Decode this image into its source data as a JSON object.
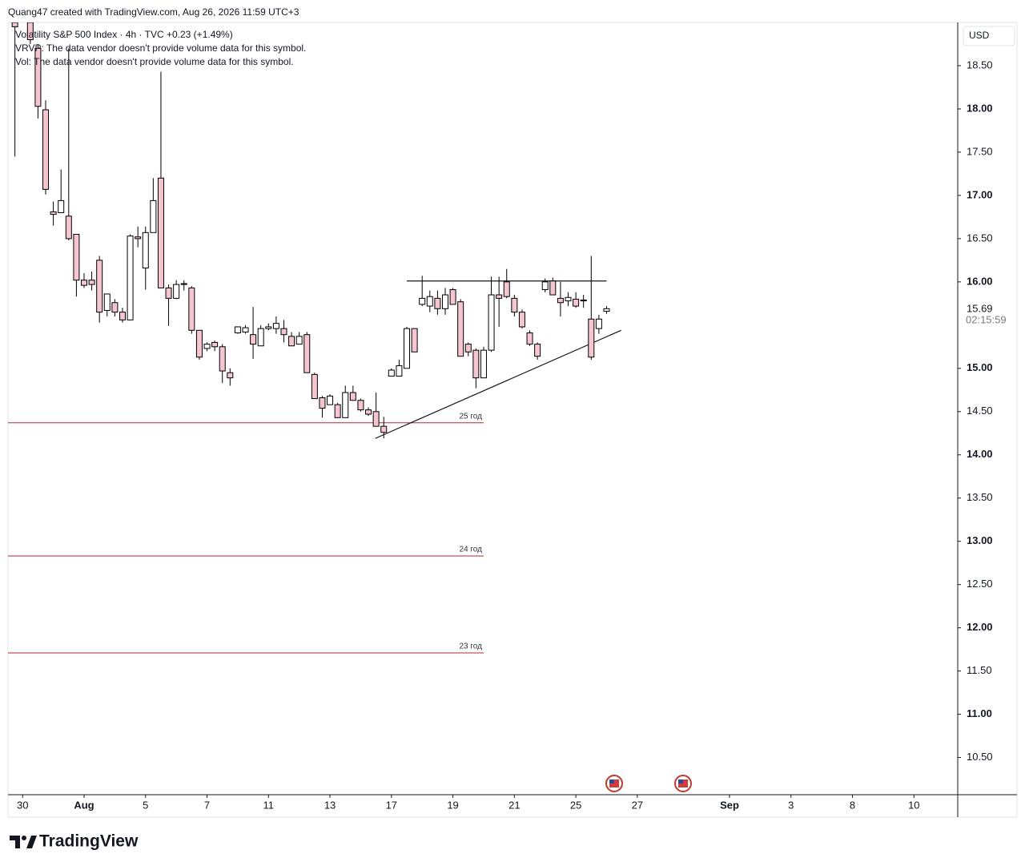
{
  "header": {
    "attribution": "Quang47 created with TradingView.com, Aug 26, 2026 11:59 UTC+3"
  },
  "footer": {
    "brand": "TradingView"
  },
  "chart_data": {
    "type": "candlestick",
    "title": "Volatility S&P 500 Index · 4h · TVC  +0.23 (+1.49%)",
    "annotations": [
      "VRVP: The data vendor doesn't provide volume data for this symbol.",
      "Vol: The data vendor doesn't provide volume data for this symbol."
    ],
    "currency": "USD",
    "last_price": 15.69,
    "countdown": "02:15:59",
    "up_color": "#ffffff",
    "down_color": "#f5c6d0",
    "wick_color": "#000000",
    "level_color": "#b22833",
    "x": [
      -1,
      1,
      2,
      3,
      4,
      5,
      6,
      7,
      8,
      9,
      10,
      11,
      12,
      13,
      14,
      15,
      16,
      17,
      18,
      19,
      20,
      21,
      22,
      23,
      24,
      25,
      26,
      27,
      28,
      29,
      30,
      31,
      32,
      33,
      34,
      35,
      36,
      37,
      38,
      39,
      40,
      41,
      42,
      43,
      44,
      45,
      46,
      47,
      48,
      49,
      50,
      51,
      52,
      53,
      54,
      55,
      56,
      57,
      58,
      59,
      60,
      61,
      62,
      63,
      64,
      65,
      66,
      67,
      68,
      69,
      70,
      71,
      72,
      73,
      74,
      75,
      76
    ],
    "open": [
      19.0,
      19.0,
      18.7,
      17.99,
      16.81,
      16.8,
      16.76,
      16.55,
      16.02,
      16.02,
      16.25,
      15.67,
      15.76,
      15.65,
      15.56,
      16.52,
      16.16,
      16.57,
      17.2,
      15.93,
      15.81,
      15.97,
      15.93,
      15.44,
      15.23,
      15.3,
      15.25,
      14.95,
      15.41,
      15.42,
      15.39,
      15.26,
      15.46,
      15.46,
      15.46,
      15.37,
      15.28,
      15.39,
      14.93,
      14.66,
      14.58,
      14.58,
      14.43,
      14.72,
      14.63,
      14.52,
      14.5,
      14.33,
      14.91,
      14.91,
      15.0,
      15.46,
      15.74,
      15.72,
      15.81,
      15.69,
      15.91,
      15.77,
      15.28,
      15.21,
      14.89,
      15.21,
      15.85,
      16.0,
      15.81,
      15.65,
      15.41,
      15.28,
      15.91,
      16.01,
      15.81,
      15.78,
      15.8,
      15.79,
      15.57,
      15.46,
      15.66
    ],
    "high": [
      19.0,
      19.0,
      18.75,
      18.1,
      16.93,
      17.3,
      18.7,
      16.55,
      16.1,
      16.12,
      16.3,
      15.86,
      15.8,
      15.7,
      16.55,
      16.64,
      16.64,
      17.2,
      18.43,
      15.97,
      16.02,
      16.02,
      15.95,
      15.44,
      15.3,
      15.32,
      15.28,
      15.0,
      15.48,
      15.5,
      15.71,
      15.5,
      15.52,
      15.6,
      15.56,
      15.42,
      15.42,
      15.42,
      14.95,
      14.68,
      14.7,
      14.6,
      14.8,
      14.8,
      14.65,
      14.55,
      14.72,
      14.44,
      15.0,
      15.1,
      15.48,
      15.46,
      16.07,
      15.9,
      15.9,
      15.93,
      15.93,
      15.8,
      15.3,
      15.23,
      15.25,
      16.06,
      16.06,
      16.15,
      15.85,
      15.68,
      15.44,
      15.3,
      16.04,
      16.05,
      16.0,
      15.88,
      15.88,
      15.85,
      16.3,
      15.62,
      15.72
    ],
    "low": [
      17.45,
      18.75,
      17.89,
      17.01,
      16.65,
      16.8,
      16.48,
      15.83,
      15.93,
      15.9,
      15.53,
      15.6,
      15.6,
      15.53,
      15.56,
      16.4,
      15.91,
      16.57,
      15.93,
      15.49,
      15.8,
      15.9,
      15.4,
      15.1,
      15.2,
      15.2,
      14.83,
      14.8,
      15.4,
      15.4,
      15.11,
      15.26,
      15.44,
      15.4,
      15.3,
      15.26,
      15.28,
      14.95,
      14.65,
      14.43,
      14.58,
      14.43,
      14.43,
      14.63,
      14.5,
      14.45,
      14.33,
      14.19,
      14.91,
      14.91,
      15.0,
      15.19,
      15.72,
      15.65,
      15.62,
      15.62,
      15.74,
      15.14,
      15.14,
      14.77,
      14.89,
      15.19,
      15.48,
      15.81,
      15.6,
      15.46,
      15.26,
      15.1,
      15.88,
      15.85,
      15.6,
      15.72,
      15.7,
      15.7,
      15.1,
      15.4,
      15.63
    ],
    "close": [
      18.95,
      18.8,
      18.03,
      17.07,
      16.78,
      16.94,
      16.5,
      16.02,
      15.96,
      15.97,
      15.65,
      15.86,
      15.65,
      15.56,
      16.53,
      16.5,
      16.57,
      16.94,
      15.93,
      15.81,
      15.97,
      15.98,
      15.44,
      15.13,
      15.28,
      15.25,
      14.97,
      14.89,
      15.48,
      15.47,
      15.28,
      15.46,
      15.48,
      15.52,
      15.39,
      15.26,
      15.37,
      14.95,
      14.65,
      14.54,
      14.68,
      14.43,
      14.72,
      14.63,
      14.52,
      14.47,
      14.33,
      14.26,
      14.98,
      15.03,
      15.46,
      15.19,
      15.81,
      15.83,
      15.69,
      15.85,
      15.74,
      15.14,
      15.19,
      14.89,
      15.21,
      15.85,
      15.81,
      15.83,
      15.65,
      15.48,
      15.28,
      15.14,
      16.0,
      15.85,
      15.76,
      15.82,
      15.72,
      15.78,
      15.13,
      15.57,
      15.69
    ],
    "levels": [
      {
        "label": "25 год",
        "value": 14.37,
        "x": [
          -1.9,
          60
        ]
      },
      {
        "label": "24 год",
        "value": 12.83,
        "x": [
          -1.9,
          60
        ]
      },
      {
        "label": "23 год",
        "value": 11.71,
        "x": [
          -1.9,
          60
        ]
      }
    ],
    "trendlines": [
      {
        "x": [
          45.9,
          77.9
        ],
        "y": [
          14.19,
          15.44
        ]
      },
      {
        "x": [
          50,
          76
        ],
        "y": [
          16.01,
          16.01
        ]
      }
    ],
    "xlim": [
      -1.9,
      121.7
    ],
    "ylim": [
      10.07,
      19.0
    ],
    "xticks": [
      {
        "value": 0,
        "label": "30"
      },
      {
        "value": 8,
        "label": "Aug"
      },
      {
        "value": 16,
        "label": "5"
      },
      {
        "value": 24,
        "label": "7"
      },
      {
        "value": 32,
        "label": "11"
      },
      {
        "value": 40,
        "label": "13"
      },
      {
        "value": 48,
        "label": "17"
      },
      {
        "value": 56,
        "label": "19"
      },
      {
        "value": 64,
        "label": "21"
      },
      {
        "value": 72,
        "label": "25"
      },
      {
        "value": 80,
        "label": "27"
      },
      {
        "value": 92,
        "label": "Sep"
      },
      {
        "value": 100,
        "label": "3"
      },
      {
        "value": 108,
        "label": "8"
      },
      {
        "value": 116,
        "label": "10"
      }
    ],
    "yticks": [
      {
        "value": 18.5,
        "label": "18.50"
      },
      {
        "value": 18,
        "label": "18.00"
      },
      {
        "value": 17.5,
        "label": "17.50"
      },
      {
        "value": 17,
        "label": "17.00"
      },
      {
        "value": 16.5,
        "label": "16.50"
      },
      {
        "value": 16,
        "label": "16.00"
      },
      {
        "value": 15,
        "label": "15.00"
      },
      {
        "value": 14.5,
        "label": "14.50"
      },
      {
        "value": 14,
        "label": "14.00"
      },
      {
        "value": 13.5,
        "label": "13.50"
      },
      {
        "value": 13,
        "label": "13.00"
      },
      {
        "value": 12.5,
        "label": "12.50"
      },
      {
        "value": 12,
        "label": "12.00"
      },
      {
        "value": 11.5,
        "label": "11.50"
      },
      {
        "value": 11,
        "label": "11.00"
      },
      {
        "value": 10.5,
        "label": "10.50"
      }
    ]
  }
}
